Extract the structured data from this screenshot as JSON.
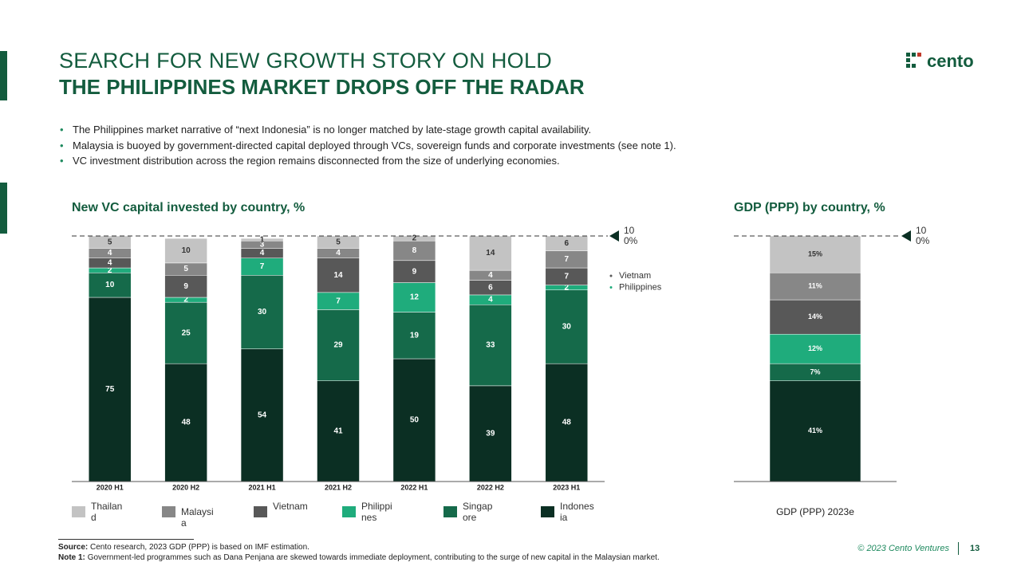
{
  "header": {
    "title": "SEARCH FOR NEW GROWTH STORY ON HOLD",
    "subtitle": "THE PHILIPPINES MARKET DROPS OFF THE RADAR",
    "logo": "cento"
  },
  "bullets": [
    "The Philippines market narrative of “next Indonesia” is no longer matched by late-stage growth capital availability.",
    "Malaysia is buoyed by government-directed capital deployed through VCs, sovereign funds and corporate investments (see note 1).",
    "VC investment distribution across the region remains disconnected from the size of underlying economies."
  ],
  "chart_data": [
    {
      "type": "bar",
      "stacked": true,
      "title": "New VC capital invested by country, %",
      "categories": [
        "2020 H1",
        "2020 H2",
        "2021 H1",
        "2021 H2",
        "2022 H1",
        "2022 H2",
        "2023 H1"
      ],
      "series": [
        {
          "name": "Indonesia",
          "color": "#0b2f23",
          "values": [
            75,
            48,
            54,
            41,
            50,
            39,
            48
          ]
        },
        {
          "name": "Singapore",
          "color": "#156a4a",
          "values": [
            10,
            25,
            30,
            29,
            19,
            33,
            30
          ]
        },
        {
          "name": "Philippines",
          "color": "#1fac7c",
          "values": [
            2,
            2,
            7,
            7,
            12,
            4,
            2
          ]
        },
        {
          "name": "Vietnam",
          "color": "#585858",
          "values": [
            4,
            9,
            4,
            14,
            9,
            6,
            7
          ]
        },
        {
          "name": "Malaysia",
          "color": "#878787",
          "values": [
            4,
            5,
            3,
            4,
            8,
            4,
            7
          ]
        },
        {
          "name": "Thailand",
          "color": "#c3c3c3",
          "values": [
            5,
            10,
            1,
            5,
            2,
            14,
            6
          ]
        }
      ],
      "ylim": [
        0,
        100
      ],
      "annotation": "100%",
      "notes": [
        "Vietnam",
        "Philippines"
      ],
      "legend": "bottom"
    },
    {
      "type": "bar",
      "stacked": true,
      "title": "GDP (PPP) by country, %",
      "categories": [
        "GDP (PPP) 2023e"
      ],
      "series": [
        {
          "name": "Indonesia",
          "color": "#0b2f23",
          "values": [
            41
          ],
          "value_labels": [
            "41%"
          ]
        },
        {
          "name": "Singapore",
          "color": "#156a4a",
          "values": [
            7
          ],
          "value_labels": [
            "7%"
          ]
        },
        {
          "name": "Philippines",
          "color": "#1fac7c",
          "values": [
            12
          ],
          "value_labels": [
            "12%"
          ]
        },
        {
          "name": "Vietnam",
          "color": "#585858",
          "values": [
            14
          ],
          "value_labels": [
            "14%"
          ]
        },
        {
          "name": "Malaysia",
          "color": "#878787",
          "values": [
            11
          ],
          "value_labels": [
            "11%"
          ]
        },
        {
          "name": "Thailand",
          "color": "#c3c3c3",
          "values": [
            15
          ],
          "value_labels": [
            "15%"
          ]
        }
      ],
      "ylim": [
        0,
        100
      ],
      "annotation": "100%"
    }
  ],
  "footnotes": [
    {
      "label": "Source:",
      "text": "Cento research, 2023 GDP (PPP) is based on IMF estimation."
    },
    {
      "label": "Note 1:",
      "text": "Government-led programmes such as Dana Penjana are skewed towards immediate deployment, contributing to the surge of new capital in the Malaysian market."
    }
  ],
  "footer": {
    "copyright": "© 2023 Cento Ventures",
    "page": "13"
  }
}
